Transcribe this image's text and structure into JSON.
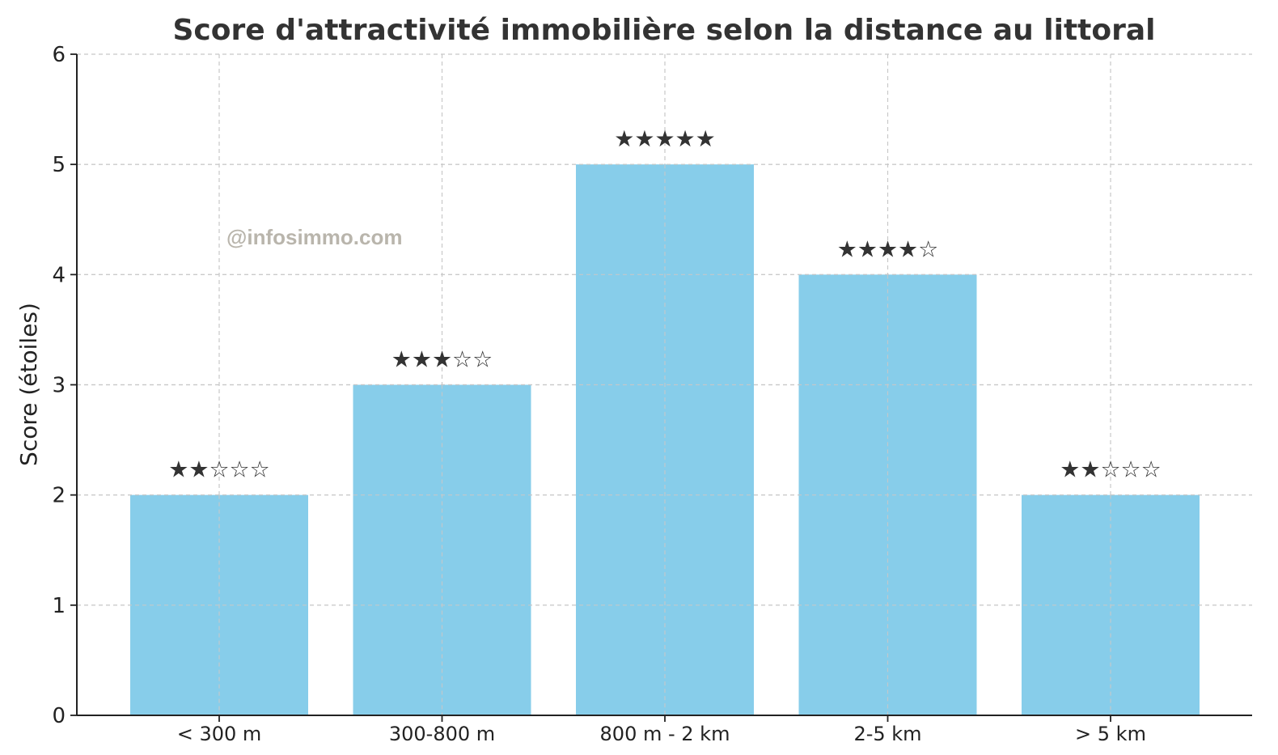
{
  "chart_data": {
    "type": "bar",
    "title": "Score d'attractivité immobilière selon la distance au littoral",
    "xlabel": "",
    "ylabel": "Score (étoiles)",
    "categories": [
      "< 300 m",
      "300-800 m",
      "800 m - 2 km",
      "2-5 km",
      "> 5 km"
    ],
    "values": [
      2,
      3,
      5,
      4,
      2
    ],
    "star_labels": [
      "★★☆☆☆",
      "★★★☆☆",
      "★★★★★",
      "★★★★☆",
      "★★☆☆☆"
    ],
    "ylim": [
      0,
      6
    ],
    "yticks": [
      "0",
      "1",
      "2",
      "3",
      "4",
      "5",
      "6"
    ],
    "grid": true,
    "legend": "none",
    "bar_color": "#87CDEA",
    "watermark": "@infosimmo.com"
  }
}
